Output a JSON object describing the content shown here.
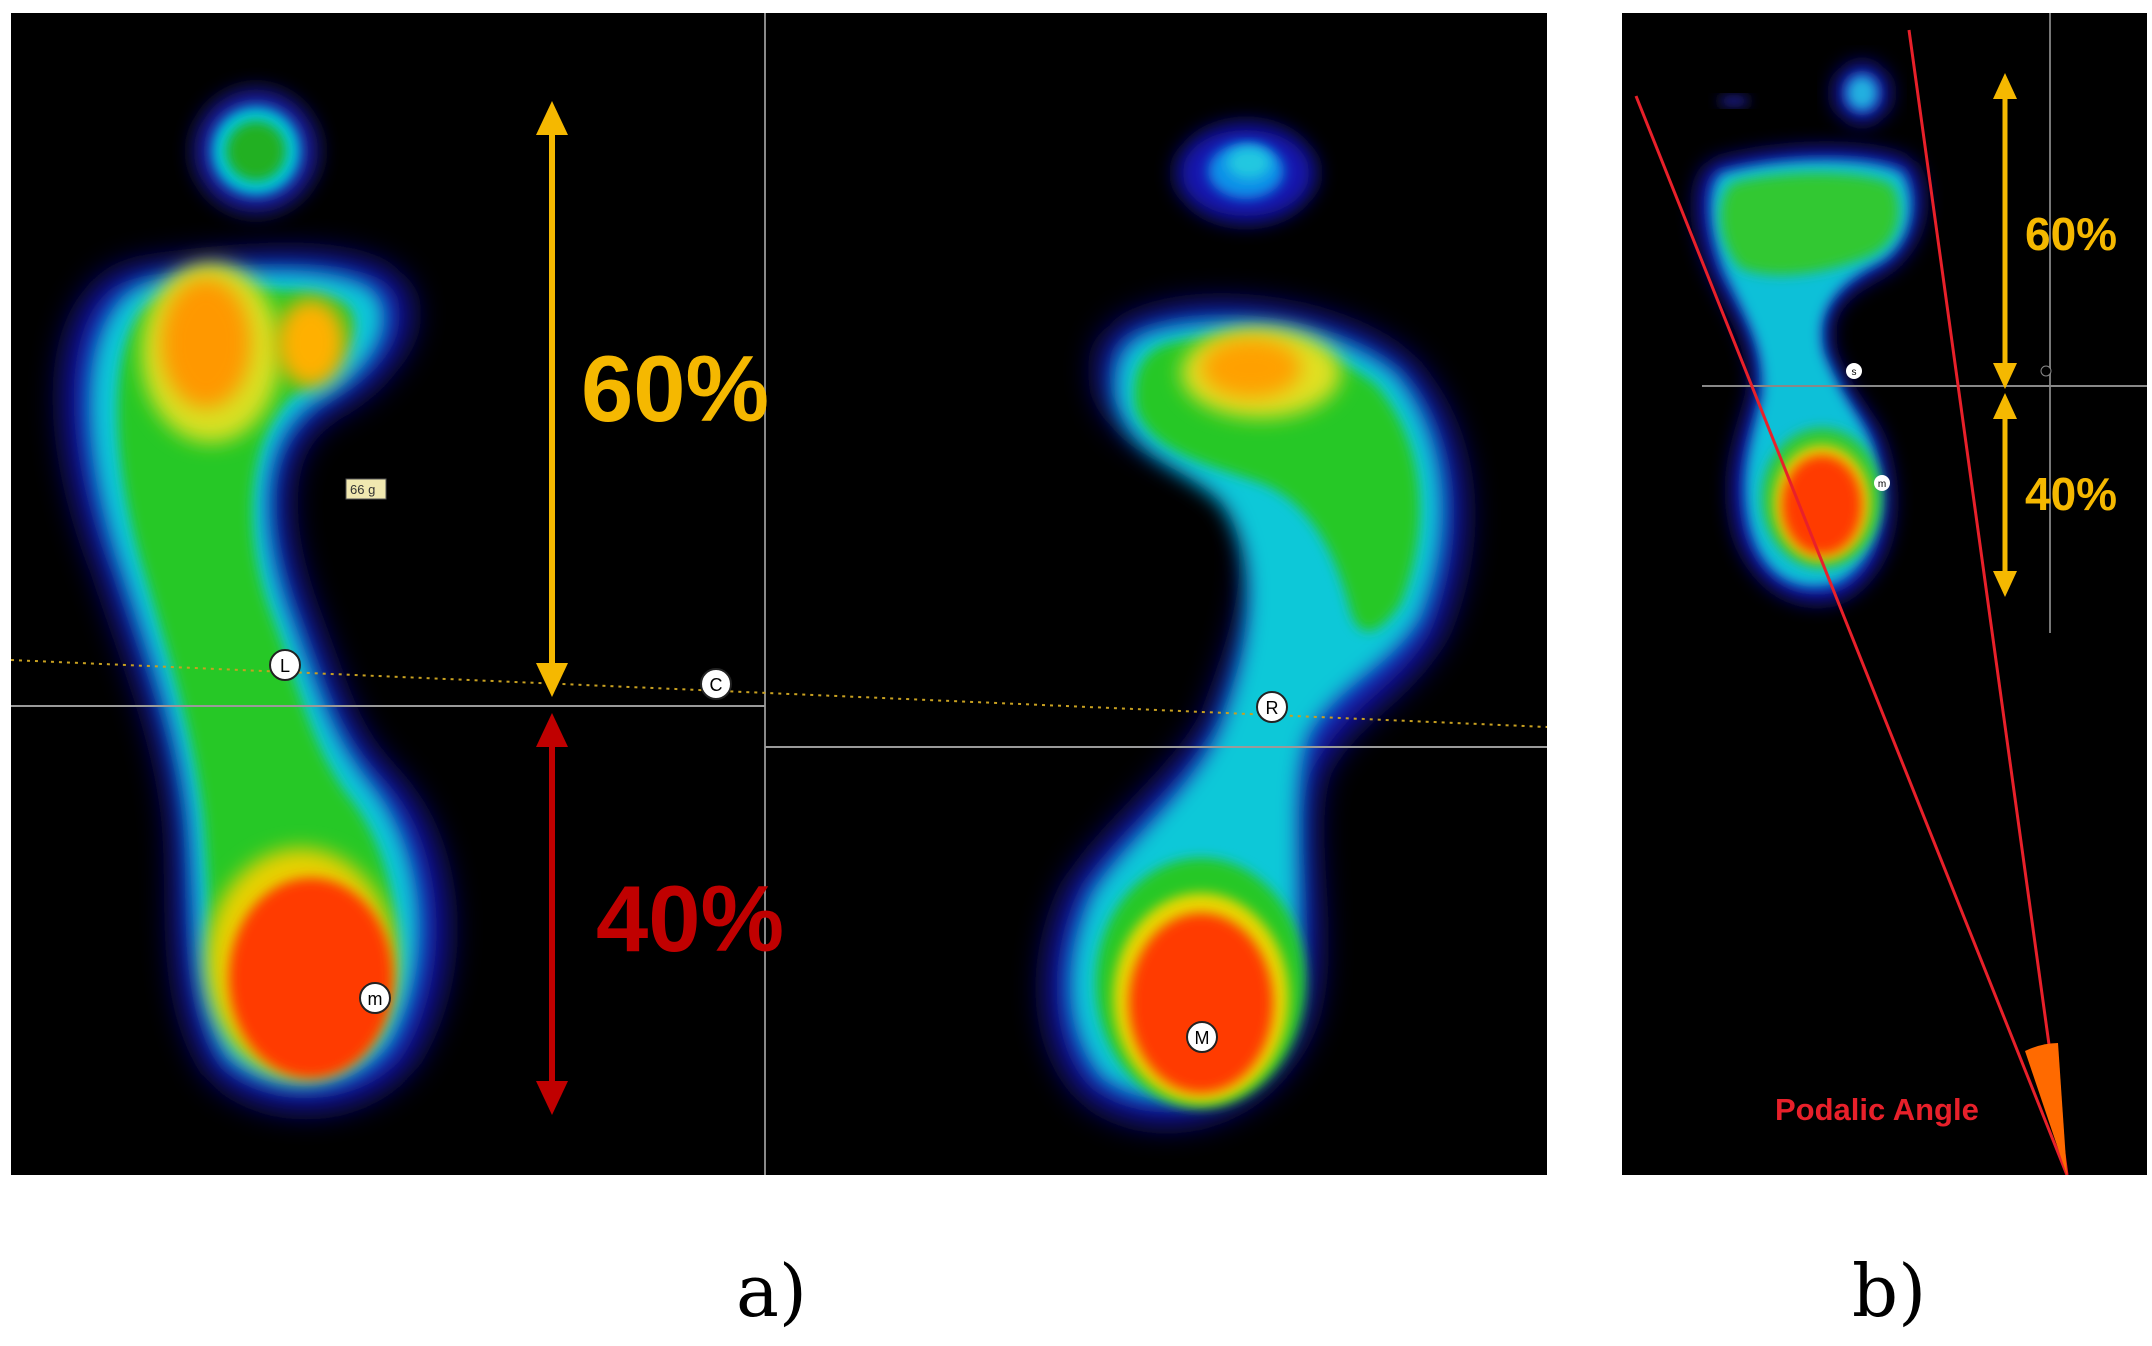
{
  "panel_a": {
    "label_60": "60%",
    "label_40": "40%",
    "weight_tag": "66 g",
    "marker_L": "L",
    "marker_C": "C",
    "marker_R": "R",
    "marker_m": "m",
    "marker_M": "M",
    "caption": "a)"
  },
  "panel_b": {
    "label_60": "60%",
    "label_40": "40%",
    "marker_s": "s",
    "marker_m": "m",
    "angle_label": "Podalic Angle",
    "caption": "b)"
  },
  "colors": {
    "yellow_arrow": "#f5b800",
    "red_arrow": "#c00000",
    "label_40_a": "#c00000",
    "angle_line": "#e8202a",
    "angle_fill": "#ff6a00"
  }
}
